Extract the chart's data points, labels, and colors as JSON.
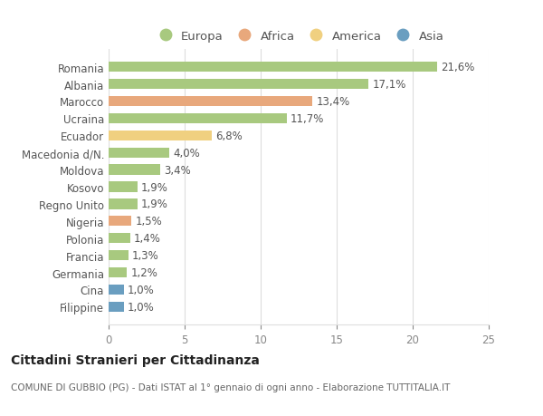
{
  "countries": [
    "Romania",
    "Albania",
    "Marocco",
    "Ucraina",
    "Ecuador",
    "Macedonia d/N.",
    "Moldova",
    "Kosovo",
    "Regno Unito",
    "Nigeria",
    "Polonia",
    "Francia",
    "Germania",
    "Cina",
    "Filippine"
  ],
  "values": [
    21.6,
    17.1,
    13.4,
    11.7,
    6.8,
    4.0,
    3.4,
    1.9,
    1.9,
    1.5,
    1.4,
    1.3,
    1.2,
    1.0,
    1.0
  ],
  "labels": [
    "21,6%",
    "17,1%",
    "13,4%",
    "11,7%",
    "6,8%",
    "4,0%",
    "3,4%",
    "1,9%",
    "1,9%",
    "1,5%",
    "1,4%",
    "1,3%",
    "1,2%",
    "1,0%",
    "1,0%"
  ],
  "continents": [
    "Europa",
    "Europa",
    "Africa",
    "Europa",
    "America",
    "Europa",
    "Europa",
    "Europa",
    "Europa",
    "Africa",
    "Europa",
    "Europa",
    "Europa",
    "Asia",
    "Asia"
  ],
  "colors": {
    "Europa": "#a8c97f",
    "Africa": "#e8a87c",
    "America": "#f0d080",
    "Asia": "#6a9ec0"
  },
  "xlim": [
    0,
    25
  ],
  "xticks": [
    0,
    5,
    10,
    15,
    20,
    25
  ],
  "title": "Cittadini Stranieri per Cittadinanza",
  "subtitle": "COMUNE DI GUBBIO (PG) - Dati ISTAT al 1° gennaio di ogni anno - Elaborazione TUTTITALIA.IT",
  "background_color": "#ffffff",
  "grid_color": "#dddddd",
  "bar_height": 0.6,
  "label_fontsize": 8.5,
  "tick_fontsize": 8.5,
  "title_fontsize": 10,
  "subtitle_fontsize": 7.5,
  "legend_fontsize": 9.5
}
